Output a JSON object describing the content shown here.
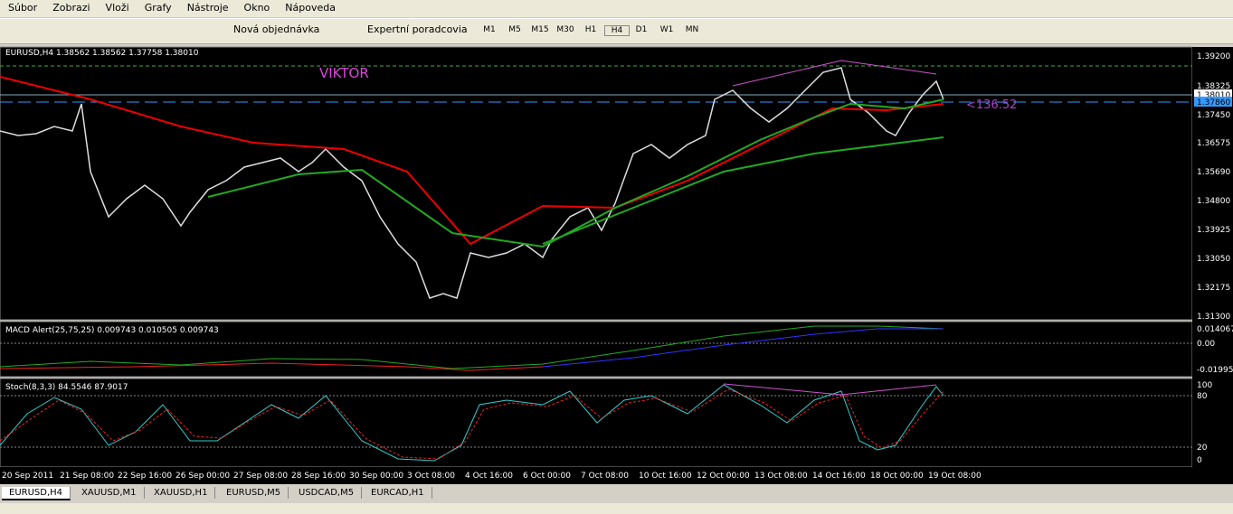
{
  "menu": [
    "Súbor",
    "Zobrazi",
    "Vloži",
    "Grafy",
    "Nástroje",
    "Okno",
    "Nápoveda"
  ],
  "toolbar": {
    "new_order": "Nová objednávka",
    "experts": "Expertní poradcovia",
    "timeframes": [
      "M1",
      "M5",
      "M15",
      "M30",
      "H1",
      "H4",
      "D1",
      "W1",
      "MN"
    ]
  },
  "chart": {
    "header": "EURUSD,H4  1.38562 1.38562 1.37758 1.38010",
    "note": "VIKTOR",
    "pips": "<136.52",
    "price_axis": [
      "1.39200",
      "1.38325",
      "1.38010",
      "1.37860",
      "1.37450",
      "1.36575",
      "1.35690",
      "1.34800",
      "1.33925",
      "1.33050",
      "1.32175",
      "1.31300"
    ]
  },
  "macd": {
    "header": "MACD Alert(25,75,25) 0.009743 0.010505 0.009743",
    "axis": [
      "0.014067",
      "0.00",
      "-0.01995"
    ]
  },
  "stoch": {
    "header": "Stoch(8,3,3) 84.5546 87.9017",
    "axis": [
      "100",
      "80",
      "20",
      "0"
    ]
  },
  "time_axis": [
    "20 Sep 2011",
    "21 Sep 08:00",
    "22 Sep 16:00",
    "26 Sep 00:00",
    "27 Sep 08:00",
    "28 Sep 16:00",
    "30 Sep 00:00",
    "3 Oct 08:00",
    "4 Oct 16:00",
    "6 Oct 00:00",
    "7 Oct 08:00",
    "10 Oct 16:00",
    "12 Oct 00:00",
    "13 Oct 08:00",
    "14 Oct 16:00",
    "18 Oct 00:00",
    "19 Oct 08:00"
  ],
  "tabs": [
    "EURUSD,H4",
    "XAUUSD,M1",
    "XAUUSD,H1",
    "EURUSD,M5",
    "USDCAD,M5",
    "EURCAD,H1"
  ]
}
